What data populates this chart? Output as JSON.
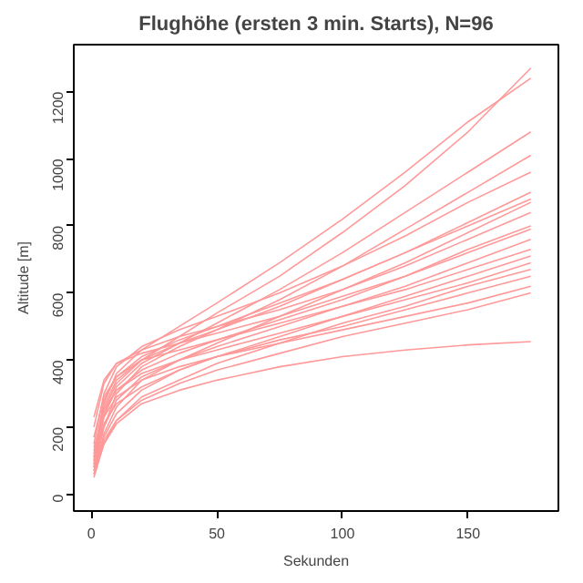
{
  "chart_data": {
    "type": "line",
    "title": "Flughöhe (ersten 3 min. Starts), N=96",
    "xlabel": "Sekunden",
    "ylabel": "Altitude [m]",
    "x": [
      1,
      5,
      10,
      20,
      35,
      50,
      75,
      100,
      125,
      150,
      175
    ],
    "xlim": [
      -7,
      186
    ],
    "xticks": [
      0,
      50,
      100,
      150
    ],
    "ylim": [
      -50,
      1340
    ],
    "yticks": [
      0,
      200,
      400,
      600,
      800,
      1000,
      1200
    ],
    "grid": false,
    "line_style": "solid",
    "series": [
      {
        "color": "#ff9999",
        "values": [
          80,
          250,
          330,
          400,
          470,
          540,
          650,
          780,
          920,
          1080,
          1270
        ]
      },
      {
        "color": "#ff9999",
        "values": [
          100,
          270,
          360,
          430,
          500,
          570,
          690,
          820,
          960,
          1110,
          1240
        ]
      },
      {
        "color": "#ff9999",
        "values": [
          90,
          230,
          320,
          390,
          450,
          510,
          610,
          720,
          840,
          960,
          1080
        ]
      },
      {
        "color": "#ff9999",
        "values": [
          70,
          200,
          300,
          380,
          440,
          490,
          580,
          680,
          790,
          900,
          1010
        ]
      },
      {
        "color": "#ff9999",
        "values": [
          150,
          300,
          380,
          440,
          490,
          530,
          600,
          680,
          770,
          870,
          960
        ]
      },
      {
        "color": "#ff9999",
        "values": [
          120,
          280,
          350,
          410,
          460,
          500,
          570,
          640,
          720,
          810,
          900
        ]
      },
      {
        "color": "#ff9999",
        "values": [
          60,
          180,
          260,
          340,
          400,
          450,
          530,
          610,
          690,
          780,
          870
        ]
      },
      {
        "color": "#ff9999",
        "values": [
          200,
          330,
          390,
          430,
          470,
          500,
          550,
          610,
          680,
          760,
          840
        ]
      },
      {
        "color": "#ff9999",
        "values": [
          110,
          240,
          310,
          370,
          420,
          460,
          520,
          580,
          650,
          730,
          800
        ]
      },
      {
        "color": "#ff9999",
        "values": [
          90,
          200,
          280,
          350,
          400,
          440,
          500,
          560,
          620,
          690,
          760
        ]
      },
      {
        "color": "#ff9999",
        "values": [
          170,
          290,
          350,
          400,
          430,
          460,
          510,
          560,
          610,
          670,
          730
        ]
      },
      {
        "color": "#ff9999",
        "values": [
          80,
          170,
          240,
          310,
          370,
          410,
          470,
          530,
          590,
          650,
          710
        ]
      },
      {
        "color": "#ff9999",
        "values": [
          130,
          250,
          310,
          360,
          400,
          430,
          480,
          530,
          580,
          630,
          690
        ]
      },
      {
        "color": "#ff9999",
        "values": [
          60,
          150,
          220,
          290,
          340,
          390,
          450,
          510,
          560,
          620,
          670
        ]
      },
      {
        "color": "#ff9999",
        "values": [
          100,
          210,
          270,
          320,
          370,
          410,
          460,
          500,
          550,
          600,
          650
        ]
      },
      {
        "color": "#ff9999",
        "values": [
          140,
          230,
          290,
          340,
          380,
          410,
          450,
          490,
          530,
          570,
          620
        ]
      },
      {
        "color": "#ff9999",
        "values": [
          70,
          160,
          220,
          280,
          330,
          370,
          420,
          470,
          510,
          550,
          600
        ]
      },
      {
        "color": "#ff9999",
        "values": [
          50,
          150,
          210,
          270,
          310,
          340,
          380,
          410,
          430,
          445,
          455
        ]
      },
      {
        "color": "#ff9999",
        "values": [
          230,
          340,
          390,
          420,
          450,
          480,
          530,
          590,
          650,
          720,
          790
        ]
      },
      {
        "color": "#ff9999",
        "values": [
          110,
          260,
          340,
          400,
          450,
          490,
          560,
          640,
          720,
          800,
          880
        ]
      }
    ]
  }
}
